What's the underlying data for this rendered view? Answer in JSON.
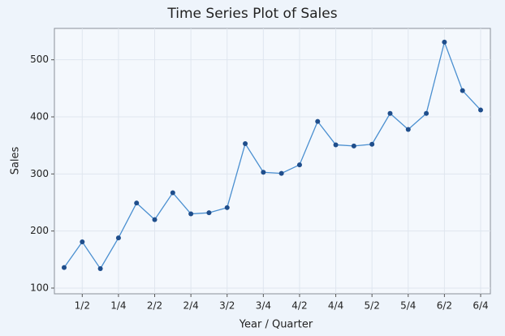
{
  "chart_data": {
    "type": "line",
    "title": "Time Series Plot of Sales",
    "x_label": "Year / Quarter",
    "y_label": "Sales",
    "categories": [
      null,
      "1/2",
      null,
      "1/4",
      null,
      "2/2",
      null,
      "2/4",
      null,
      "3/2",
      null,
      "3/4",
      null,
      "4/2",
      null,
      "4/4",
      null,
      "5/2",
      null,
      "5/4",
      null,
      "6/2",
      null,
      "6/4"
    ],
    "series": [
      {
        "name": "Sales",
        "color": "#4a8fd0",
        "marker_color": "#1f4e8c",
        "values": [
          136,
          181,
          134,
          188,
          249,
          220,
          267,
          230,
          232,
          241,
          353,
          303,
          301,
          316,
          392,
          351,
          349,
          352,
          406,
          378,
          406,
          531,
          446,
          412
        ]
      }
    ],
    "ylim": [
      90,
      555
    ],
    "yticks": [
      100,
      200,
      300,
      400,
      500
    ],
    "grid": true
  }
}
